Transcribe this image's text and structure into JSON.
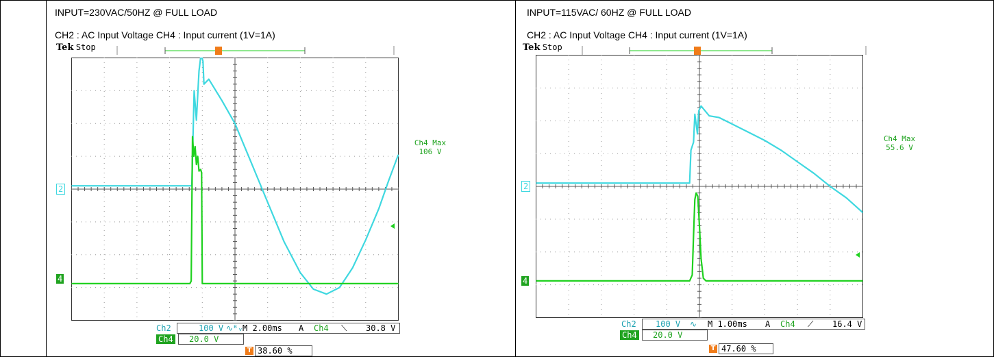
{
  "colors": {
    "ch2": "#3fd8e0",
    "ch4": "#1fd11f",
    "trigger": "#f07c1a",
    "grid": "#333333"
  },
  "chart_data": [
    {
      "type": "line",
      "title": "INPUT=230VAC/50HZ @ FULL LOAD",
      "channels_label": "CH2 : AC Input Voltage    CH4 : Input current (1V=1A)",
      "header": {
        "brand": "Tek",
        "status": "Stop"
      },
      "xlim": [
        0,
        10
      ],
      "ylim": [
        -4,
        4
      ],
      "ch2_marker": "2",
      "ch4_marker": "4",
      "measurement": {
        "label": "Ch4 Max",
        "value": "106 V"
      },
      "readout": {
        "ch2_name": "Ch2",
        "ch2_scale": "100 V",
        "ch2_coupling": "∿ᴮᵥ",
        "timebase": "M 2.00ms",
        "trig_mode": "A",
        "trig_src": "Ch4",
        "trig_slope": "⟍",
        "trig_level": "30.8 V",
        "ch4_name": "Ch4",
        "ch4_scale": "20.0 V",
        "trig_pos": "38.60 %"
      },
      "series": [
        {
          "name": "CH2",
          "points": [
            [
              0,
              0.1
            ],
            [
              3.68,
              0.1
            ],
            [
              3.75,
              3.0
            ],
            [
              3.82,
              2.1
            ],
            [
              3.9,
              3.6
            ],
            [
              3.96,
              4.1
            ],
            [
              4.02,
              3.9
            ],
            [
              4.05,
              3.2
            ],
            [
              4.2,
              3.35
            ],
            [
              4.6,
              2.7
            ],
            [
              5.0,
              2.0
            ],
            [
              5.5,
              0.8
            ],
            [
              6.0,
              -0.4
            ],
            [
              6.5,
              -1.6
            ],
            [
              7.0,
              -2.55
            ],
            [
              7.4,
              -3.05
            ],
            [
              7.8,
              -3.2
            ],
            [
              8.2,
              -3.0
            ],
            [
              8.6,
              -2.4
            ],
            [
              9.0,
              -1.55
            ],
            [
              9.4,
              -0.6
            ],
            [
              9.7,
              0.25
            ],
            [
              10,
              1.05
            ]
          ]
        },
        {
          "name": "CH4",
          "points": [
            [
              0,
              -2.88
            ],
            [
              3.62,
              -2.88
            ],
            [
              3.66,
              -2.8
            ],
            [
              3.7,
              1.6
            ],
            [
              3.74,
              1.0
            ],
            [
              3.78,
              1.3
            ],
            [
              3.82,
              0.75
            ],
            [
              3.86,
              1.0
            ],
            [
              3.9,
              0.55
            ],
            [
              3.95,
              0.6
            ],
            [
              3.98,
              0.5
            ],
            [
              4.0,
              -2.88
            ],
            [
              10,
              -2.88
            ]
          ]
        }
      ]
    },
    {
      "type": "line",
      "title": "INPUT=115VAC/ 60HZ @ FULL LOAD",
      "channels_label": "CH2 : AC Input Voltage    CH4 : Input current (1V=1A)",
      "header": {
        "brand": "Tek",
        "status": "Stop"
      },
      "xlim": [
        0,
        10
      ],
      "ylim": [
        -4,
        4
      ],
      "ch2_marker": "2",
      "ch4_marker": "4",
      "measurement": {
        "label": "Ch4 Max",
        "value": "55.6 V"
      },
      "readout": {
        "ch2_name": "Ch2",
        "ch2_scale": "100 V",
        "ch2_coupling": "∿",
        "timebase": "M 1.00ms",
        "trig_mode": "A",
        "trig_src": "Ch4",
        "trig_slope": "⟋",
        "trig_level": "16.4 V",
        "ch4_name": "Ch4",
        "ch4_scale": "20.0 V",
        "trig_pos": "47.60 %"
      },
      "series": [
        {
          "name": "CH2",
          "points": [
            [
              0,
              0.1
            ],
            [
              4.7,
              0.1
            ],
            [
              4.74,
              1.1
            ],
            [
              4.82,
              1.35
            ],
            [
              4.86,
              2.2
            ],
            [
              4.94,
              1.6
            ],
            [
              4.98,
              2.3
            ],
            [
              5.05,
              2.45
            ],
            [
              5.3,
              2.15
            ],
            [
              5.6,
              2.1
            ],
            [
              6.0,
              1.9
            ],
            [
              6.5,
              1.65
            ],
            [
              7.0,
              1.4
            ],
            [
              7.5,
              1.1
            ],
            [
              8.0,
              0.75
            ],
            [
              8.5,
              0.4
            ],
            [
              9.0,
              0.0
            ],
            [
              9.5,
              -0.35
            ],
            [
              10,
              -0.8
            ]
          ]
        },
        {
          "name": "CH4",
          "points": [
            [
              0,
              -2.88
            ],
            [
              4.7,
              -2.88
            ],
            [
              4.78,
              -2.7
            ],
            [
              4.82,
              -1.5
            ],
            [
              4.86,
              -0.4
            ],
            [
              4.9,
              -0.2
            ],
            [
              4.95,
              -0.3
            ],
            [
              5.0,
              -1.2
            ],
            [
              5.05,
              -2.2
            ],
            [
              5.12,
              -2.8
            ],
            [
              5.2,
              -2.88
            ],
            [
              10,
              -2.88
            ]
          ]
        }
      ]
    }
  ]
}
